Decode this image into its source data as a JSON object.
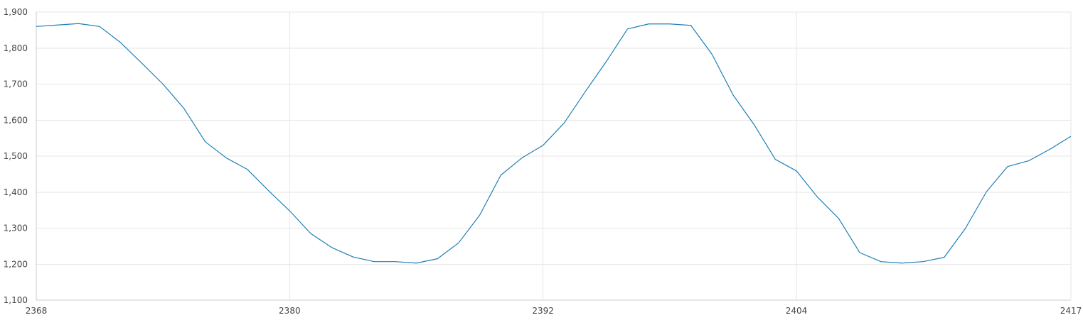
{
  "chart_data": {
    "type": "line",
    "title": "",
    "xlabel": "",
    "ylabel": "",
    "xlim": [
      2368,
      2417
    ],
    "ylim": [
      1100,
      1900
    ],
    "x_ticks": [
      2368,
      2380,
      2392,
      2404,
      2417
    ],
    "x_tick_labels": [
      "2368",
      "2380",
      "2392",
      "2404",
      "2417"
    ],
    "y_ticks": [
      1100,
      1200,
      1300,
      1400,
      1500,
      1600,
      1700,
      1800,
      1900
    ],
    "y_tick_labels": [
      "1,100",
      "1,200",
      "1,300",
      "1,400",
      "1,500",
      "1,600",
      "1,700",
      "1,800",
      "1,900"
    ],
    "grid": true,
    "legend": "none",
    "line_color": "#1f7fb4",
    "series": [
      {
        "x": [
          2368,
          2369,
          2370,
          2371,
          2372,
          2373,
          2374,
          2375,
          2376,
          2377,
          2378,
          2379,
          2380,
          2381,
          2382,
          2383,
          2384,
          2385,
          2386,
          2387,
          2388,
          2389,
          2390,
          2391,
          2392,
          2393,
          2394,
          2395,
          2396,
          2397,
          2398,
          2399,
          2400,
          2401,
          2402,
          2403,
          2404,
          2405,
          2406,
          2407,
          2408,
          2409,
          2410,
          2411,
          2412,
          2413,
          2414,
          2415,
          2416,
          2417
        ],
        "y": [
          1860,
          1864,
          1868,
          1860,
          1815,
          1758,
          1700,
          1632,
          1540,
          1495,
          1463,
          1404,
          1348,
          1285,
          1246,
          1220,
          1207,
          1207,
          1203,
          1215,
          1259,
          1336,
          1447,
          1495,
          1530,
          1592,
          1679,
          1763,
          1853,
          1867,
          1867,
          1863,
          1783,
          1670,
          1587,
          1491,
          1459,
          1386,
          1327,
          1232,
          1207,
          1203,
          1207,
          1219,
          1299,
          1401,
          1471,
          1487,
          1519,
          1555
        ]
      }
    ]
  }
}
